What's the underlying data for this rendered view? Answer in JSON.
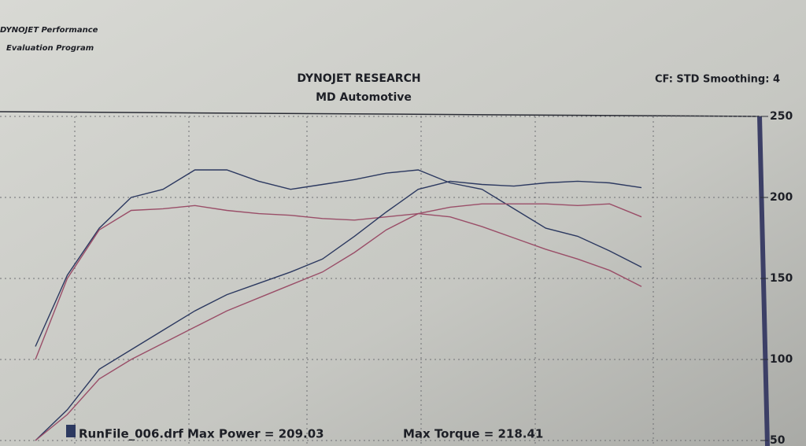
{
  "header": {
    "brand1": "DYNOJET Performance",
    "brand2": "Evaluation Program"
  },
  "chart_data": {
    "type": "line",
    "title": "DYNOJET RESEARCH",
    "subtitle": "MD Automotive",
    "corner_note": "CF: STD Smoothing: 4",
    "categories": [
      null,
      null,
      null,
      null,
      null,
      null,
      null,
      null,
      null,
      null,
      null,
      null,
      null,
      null,
      null,
      null,
      null,
      null,
      null,
      null
    ],
    "series": [
      {
        "color": "#2c3960",
        "values": [
          108,
          152,
          181,
          200,
          205,
          217,
          217,
          210,
          205,
          208,
          211,
          215,
          217,
          209,
          205,
          193,
          181,
          176,
          167,
          157
        ]
      },
      {
        "color": "#9a4e68",
        "values": [
          100,
          150,
          180,
          192,
          193,
          195,
          192,
          190,
          189,
          187,
          186,
          188,
          190,
          188,
          182,
          175,
          168,
          162,
          155,
          145
        ]
      },
      {
        "color": "#2c3960",
        "values": [
          50,
          69,
          94,
          106,
          118,
          130,
          140,
          147,
          154,
          162,
          176,
          191,
          205,
          210,
          208,
          207,
          209,
          210,
          209,
          206
        ]
      },
      {
        "color": "#9a4e68",
        "values": [
          50,
          66,
          88,
          100,
          110,
          120,
          130,
          138,
          146,
          154,
          166,
          180,
          190,
          194,
          196,
          196,
          196,
          195,
          196,
          188
        ]
      }
    ],
    "ylim": [
      50,
      250
    ],
    "yticks": [
      250,
      200,
      150,
      100,
      50
    ],
    "y_axis_side": "right",
    "grid": true,
    "annotations": [
      "RunFile_006.drf Max Power = 209.03",
      "Max Torque = 218.41"
    ]
  }
}
